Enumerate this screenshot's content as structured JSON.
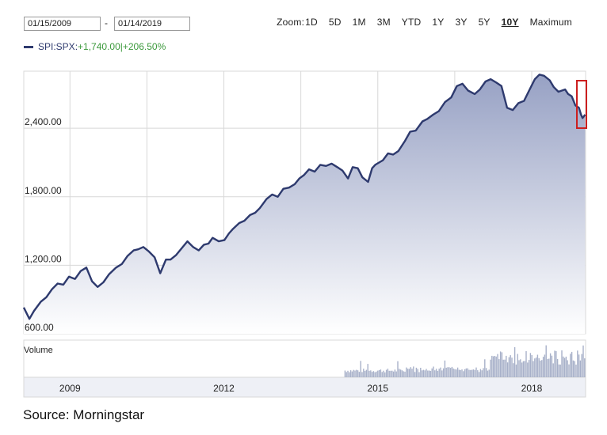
{
  "date_range": {
    "from": "01/15/2009",
    "separator": "-",
    "to": "01/14/2019"
  },
  "zoom": {
    "label": "Zoom:",
    "options": [
      "1D",
      "5D",
      "1M",
      "3M",
      "YTD",
      "1Y",
      "3Y",
      "5Y",
      "10Y",
      "Maximum"
    ],
    "active": "10Y"
  },
  "legend": {
    "series_name": "SPI:SPX:",
    "change_text": "+1,740.00|+206.50%"
  },
  "colors": {
    "line": "#2e3a6e",
    "area_top": "#97a1c4",
    "area_bottom": "#ffffff",
    "volume": "#a7b0c9",
    "grid": "#d8d8d8",
    "highlight_box": "#cc1f1f",
    "change_text": "#3d9a3d"
  },
  "chart_data": {
    "type": "area",
    "title": "",
    "xlabel": "",
    "ylabel": "",
    "ylim": [
      600,
      2900
    ],
    "xlim": [
      2008.1,
      2019.05
    ],
    "grid": true,
    "y_ticks": [
      "600.00",
      "1,200.00",
      "1,800.00",
      "2,400.00"
    ],
    "y_tick_values": [
      600,
      1200,
      1800,
      2400
    ],
    "x_ticks": [
      "2009",
      "2012",
      "2015",
      "2018"
    ],
    "x_tick_values": [
      2009,
      2012,
      2015,
      2018
    ],
    "x_grid_values": [
      2008.1,
      2009,
      2010.5,
      2012,
      2013.5,
      2015,
      2016.5,
      2018,
      2019.05
    ],
    "volume_label": "Volume",
    "series": [
      {
        "name": "SPI:SPX",
        "x": [
          2008.1,
          2008.21,
          2008.3,
          2008.43,
          2008.54,
          2008.65,
          2008.76,
          2008.87,
          2008.98,
          2009.1,
          2009.21,
          2009.32,
          2009.43,
          2009.54,
          2009.65,
          2009.76,
          2009.9,
          2010.01,
          2010.12,
          2010.24,
          2010.33,
          2010.43,
          2010.54,
          2010.65,
          2010.76,
          2010.87,
          2010.96,
          2011.07,
          2011.18,
          2011.29,
          2011.4,
          2011.51,
          2011.61,
          2011.7,
          2011.78,
          2011.9,
          2012.01,
          2012.1,
          2012.18,
          2012.3,
          2012.4,
          2012.51,
          2012.61,
          2012.7,
          2012.83,
          2012.94,
          2013.05,
          2013.16,
          2013.27,
          2013.38,
          2013.47,
          2013.56,
          2013.66,
          2013.77,
          2013.88,
          2013.99,
          2014.1,
          2014.21,
          2014.31,
          2014.42,
          2014.51,
          2014.61,
          2014.7,
          2014.81,
          2014.89,
          2014.95,
          2015.1,
          2015.2,
          2015.3,
          2015.4,
          2015.53,
          2015.63,
          2015.74,
          2015.87,
          2015.96,
          2016.08,
          2016.19,
          2016.31,
          2016.43,
          2016.54,
          2016.65,
          2016.76,
          2016.89,
          2016.99,
          2017.1,
          2017.2,
          2017.31,
          2017.41,
          2017.52,
          2017.63,
          2017.74,
          2017.85,
          2017.96,
          2018.06,
          2018.15,
          2018.24,
          2018.35,
          2018.43,
          2018.52,
          2018.65,
          2018.71,
          2018.78,
          2018.85,
          2018.92,
          2018.96,
          2018.99,
          2019.01,
          2019.04
        ],
        "values": [
          830,
          730,
          800,
          880,
          920,
          990,
          1040,
          1030,
          1100,
          1080,
          1150,
          1180,
          1060,
          1010,
          1050,
          1120,
          1180,
          1210,
          1280,
          1330,
          1340,
          1360,
          1320,
          1270,
          1130,
          1250,
          1250,
          1290,
          1350,
          1410,
          1360,
          1330,
          1380,
          1390,
          1440,
          1410,
          1420,
          1480,
          1520,
          1570,
          1590,
          1640,
          1660,
          1700,
          1780,
          1820,
          1800,
          1870,
          1880,
          1910,
          1960,
          1990,
          2040,
          2020,
          2080,
          2070,
          2090,
          2060,
          2030,
          1960,
          2060,
          2050,
          1970,
          1930,
          2050,
          2080,
          2120,
          2180,
          2170,
          2200,
          2290,
          2370,
          2380,
          2460,
          2480,
          2520,
          2550,
          2630,
          2670,
          2770,
          2790,
          2730,
          2700,
          2740,
          2810,
          2830,
          2800,
          2770,
          2580,
          2560,
          2620,
          2640,
          2740,
          2830,
          2870,
          2860,
          2820,
          2760,
          2720,
          2740,
          2700,
          2680,
          2600,
          2580,
          2520,
          2490,
          2500,
          2520
        ]
      }
    ]
  },
  "source": "Source: Morningstar"
}
